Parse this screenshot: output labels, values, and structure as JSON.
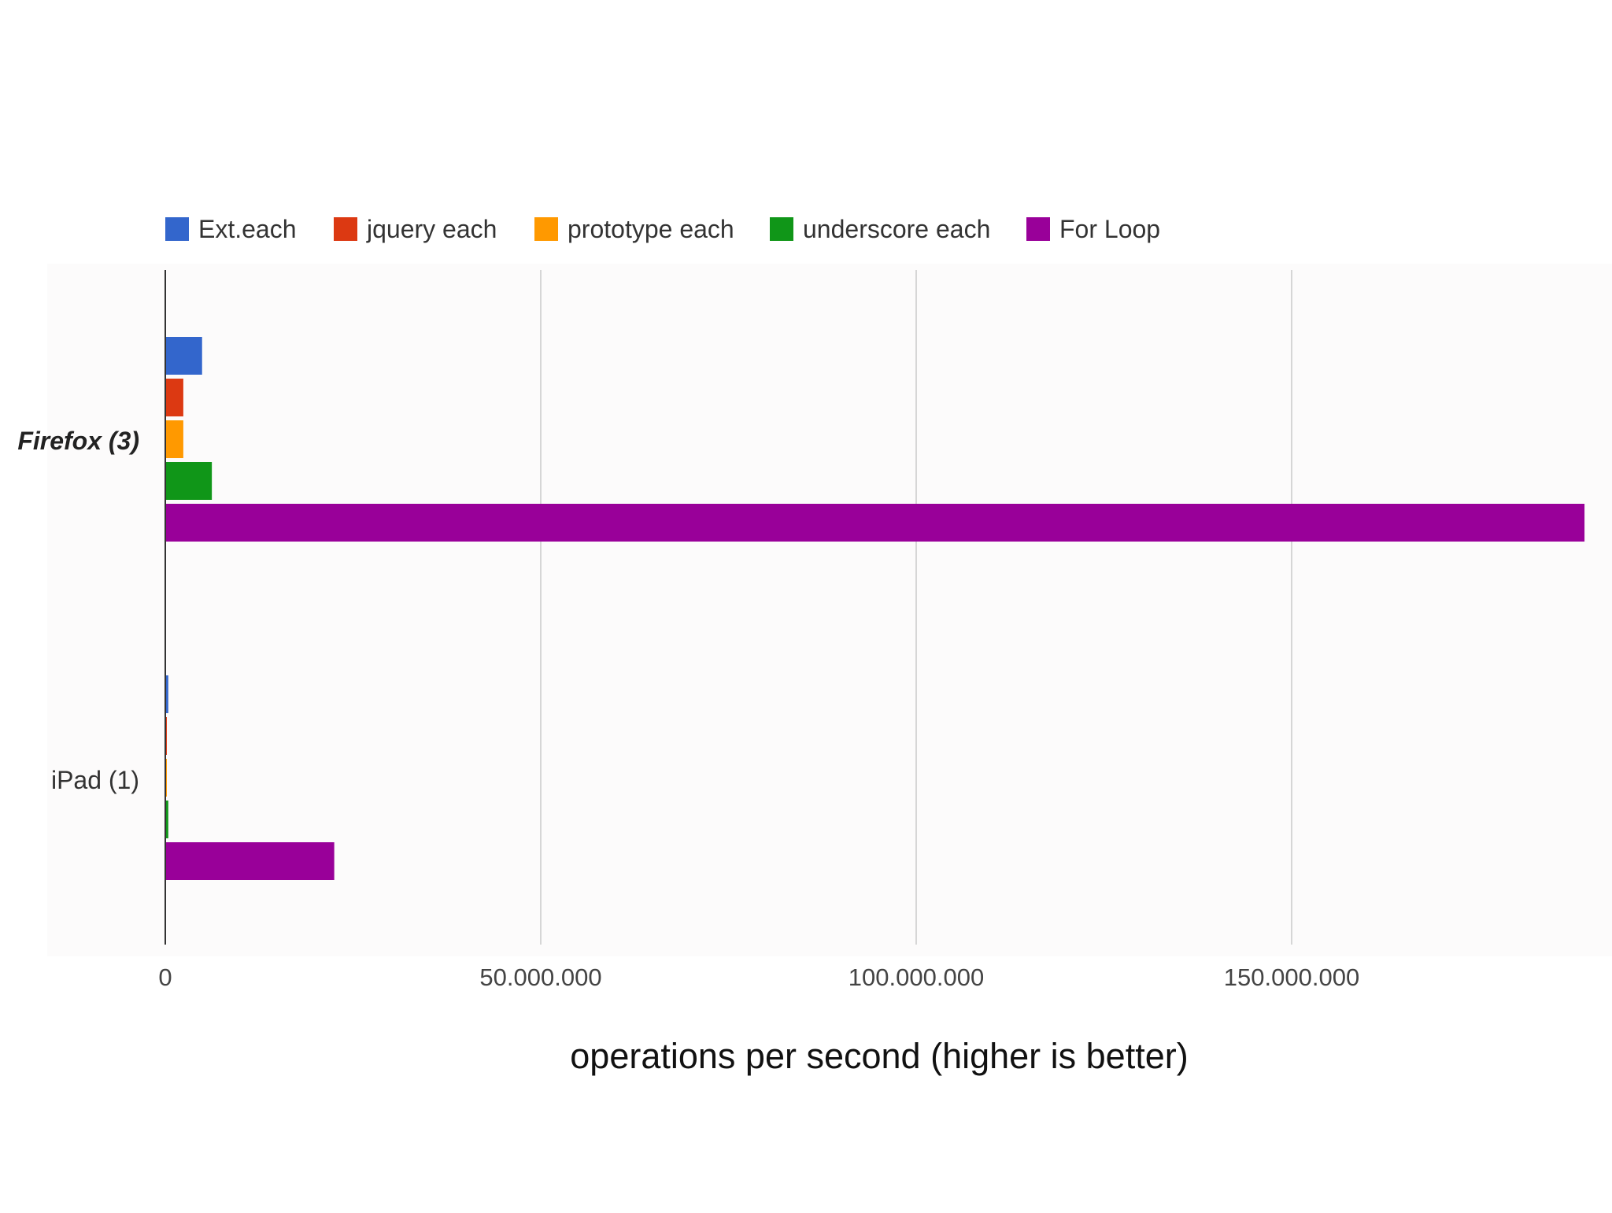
{
  "chart_data": {
    "type": "bar",
    "orientation": "horizontal",
    "categories": [
      "Firefox (3)",
      "iPad (1)"
    ],
    "series": [
      {
        "name": "Ext.each",
        "color": "#3366cc",
        "values": [
          4900000,
          400000
        ]
      },
      {
        "name": "jquery each",
        "color": "#dc3912",
        "values": [
          2400000,
          100000
        ]
      },
      {
        "name": "prototype each",
        "color": "#ff9900",
        "values": [
          2400000,
          100000
        ]
      },
      {
        "name": "underscore each",
        "color": "#109618",
        "values": [
          6200000,
          400000
        ]
      },
      {
        "name": "For Loop",
        "color": "#990099",
        "values": [
          189000000,
          22500000
        ]
      }
    ],
    "x_ticks": [
      0,
      50000000,
      100000000,
      150000000
    ],
    "x_tick_labels": [
      "0",
      "50.000.000",
      "100.000.000",
      "150.000.000"
    ],
    "xlim": [
      0,
      190000000
    ],
    "xlabel": "operations per second (higher is better)",
    "ylabel": "",
    "title": "",
    "grid": true,
    "legend_position": "top",
    "category_bold": [
      true,
      false
    ]
  }
}
